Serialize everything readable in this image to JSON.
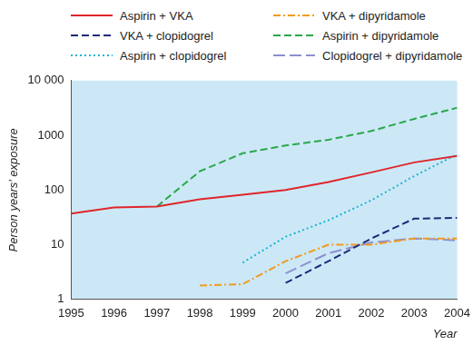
{
  "chart_data": {
    "type": "line",
    "x_label": "Year",
    "y_label": "Person years' exposure",
    "x": [
      1995,
      1996,
      1997,
      1998,
      1999,
      2000,
      2001,
      2002,
      2003,
      2004
    ],
    "xlim": [
      1995,
      2004
    ],
    "xticks": [
      1995,
      1996,
      1997,
      1998,
      1999,
      2000,
      2001,
      2002,
      2003,
      2004
    ],
    "ylim": [
      1,
      10000
    ],
    "yticks": [
      1,
      10,
      100,
      1000,
      {
        "value": 10000,
        "label": "10 000"
      }
    ],
    "log": "y",
    "grid": false,
    "legend": "top",
    "series": [
      {
        "name": "Aspirin + VKA",
        "color": "#e0262b",
        "line_style": "solid",
        "values": [
          37,
          48,
          50,
          68,
          82,
          100,
          140,
          210,
          320,
          420
        ]
      },
      {
        "name": "VKA + clopidogrel",
        "color": "#1c2a7a",
        "line_style": "dashed",
        "values": [
          null,
          null,
          null,
          null,
          null,
          2,
          5,
          13,
          30,
          31
        ]
      },
      {
        "name": "Aspirin + clopidogrel",
        "color": "#1cb5d0",
        "line_style": "dotted",
        "values": [
          null,
          null,
          null,
          null,
          4.7,
          14,
          28,
          65,
          180,
          450
        ]
      },
      {
        "name": "VKA + dipyridamole",
        "color": "#f29a1f",
        "line_style": "dashdot",
        "values": [
          null,
          null,
          null,
          1.8,
          1.9,
          5,
          10,
          10,
          13,
          13
        ]
      },
      {
        "name": "Aspirin + dipyridamole",
        "color": "#2aa84a",
        "line_style": "dashed",
        "values": [
          null,
          null,
          50,
          220,
          470,
          650,
          830,
          1200,
          2000,
          3200
        ]
      },
      {
        "name": "Clopidogrel + dipyridamole",
        "color": "#8f8fd0",
        "line_style": "longdash",
        "values": [
          null,
          null,
          null,
          null,
          null,
          3,
          7,
          11,
          13,
          12
        ]
      }
    ]
  }
}
